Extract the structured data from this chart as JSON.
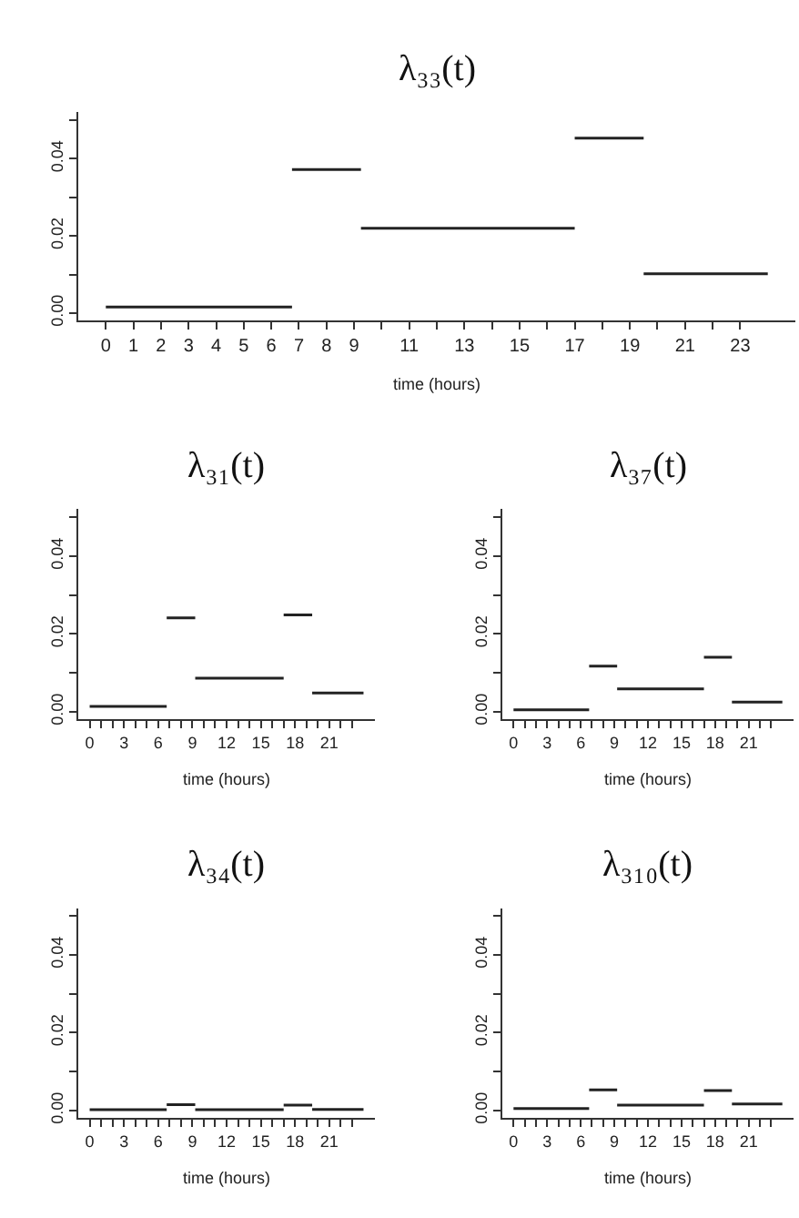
{
  "chart_data": [
    {
      "type": "line",
      "title": "λ₃₃(t)",
      "xlabel": "time (hours)",
      "marker": "none",
      "line_style": "solid",
      "xlim": [
        -1,
        25
      ],
      "ylim": [
        -0.002,
        0.052
      ],
      "xticks": [
        0,
        1,
        2,
        3,
        4,
        5,
        6,
        7,
        8,
        9,
        {
          "value": 10,
          "label": null
        },
        11,
        {
          "value": 12,
          "label": null
        },
        13,
        {
          "value": 14,
          "label": null
        },
        15,
        {
          "value": 16,
          "label": null
        },
        17,
        {
          "value": 18,
          "label": null
        },
        19,
        {
          "value": 20,
          "label": null
        },
        21,
        {
          "value": 22,
          "label": null
        },
        23
      ],
      "yticks": [
        {
          "value": 0,
          "label": "0.00"
        },
        {
          "value": 0.01,
          "label": null
        },
        {
          "value": 0.02,
          "label": "0.02"
        },
        {
          "value": 0.03,
          "label": null
        },
        {
          "value": 0.04,
          "label": "0.04"
        },
        {
          "value": 0.05,
          "label": null
        }
      ],
      "series": [
        {
          "color": "#222222",
          "x": [
            0,
            6.75
          ],
          "values": [
            0.0016,
            0.0016
          ]
        },
        {
          "color": "#222222",
          "x": [
            6.75,
            9.25
          ],
          "values": [
            0.0372,
            0.0372
          ]
        },
        {
          "color": "#222222",
          "x": [
            9.25,
            17
          ],
          "values": [
            0.022,
            0.022
          ]
        },
        {
          "color": "#222222",
          "x": [
            17,
            19.5
          ],
          "values": [
            0.0453,
            0.0453
          ]
        },
        {
          "color": "#222222",
          "x": [
            19.5,
            24
          ],
          "values": [
            0.0102,
            0.0102
          ]
        }
      ]
    },
    {
      "type": "line",
      "title": "λ₃₁(t)",
      "xlabel": "time (hours)",
      "marker": "none",
      "line_style": "solid",
      "xlim": [
        -1,
        25
      ],
      "ylim": [
        -0.002,
        0.052
      ],
      "xticks": [
        0,
        {
          "value": 1,
          "label": null
        },
        {
          "value": 2,
          "label": null
        },
        3,
        {
          "value": 4,
          "label": null
        },
        {
          "value": 5,
          "label": null
        },
        6,
        {
          "value": 7,
          "label": null
        },
        {
          "value": 8,
          "label": null
        },
        9,
        {
          "value": 10,
          "label": null
        },
        {
          "value": 11,
          "label": null
        },
        12,
        {
          "value": 13,
          "label": null
        },
        {
          "value": 14,
          "label": null
        },
        15,
        {
          "value": 16,
          "label": null
        },
        {
          "value": 17,
          "label": null
        },
        18,
        {
          "value": 19,
          "label": null
        },
        {
          "value": 20,
          "label": null
        },
        21,
        {
          "value": 22,
          "label": null
        },
        {
          "value": 23,
          "label": null
        }
      ],
      "yticks": [
        {
          "value": 0,
          "label": "0.00"
        },
        {
          "value": 0.01,
          "label": null
        },
        {
          "value": 0.02,
          "label": "0.02"
        },
        {
          "value": 0.03,
          "label": null
        },
        {
          "value": 0.04,
          "label": "0.04"
        },
        {
          "value": 0.05,
          "label": null
        }
      ],
      "series": [
        {
          "color": "#222222",
          "x": [
            0,
            6.75
          ],
          "values": [
            0.0014,
            0.0014
          ]
        },
        {
          "color": "#222222",
          "x": [
            6.75,
            9.25
          ],
          "values": [
            0.0241,
            0.0241
          ]
        },
        {
          "color": "#222222",
          "x": [
            9.25,
            17
          ],
          "values": [
            0.0086,
            0.0086
          ]
        },
        {
          "color": "#222222",
          "x": [
            17,
            19.5
          ],
          "values": [
            0.0249,
            0.0249
          ]
        },
        {
          "color": "#222222",
          "x": [
            19.5,
            24
          ],
          "values": [
            0.0048,
            0.0048
          ]
        }
      ]
    },
    {
      "type": "line",
      "title": "λ₃₇(t)",
      "xlabel": "time (hours)",
      "marker": "none",
      "line_style": "solid",
      "xlim": [
        -1,
        25
      ],
      "ylim": [
        -0.002,
        0.052
      ],
      "xticks": [
        0,
        {
          "value": 1,
          "label": null
        },
        {
          "value": 2,
          "label": null
        },
        3,
        {
          "value": 4,
          "label": null
        },
        {
          "value": 5,
          "label": null
        },
        6,
        {
          "value": 7,
          "label": null
        },
        {
          "value": 8,
          "label": null
        },
        9,
        {
          "value": 10,
          "label": null
        },
        {
          "value": 11,
          "label": null
        },
        12,
        {
          "value": 13,
          "label": null
        },
        {
          "value": 14,
          "label": null
        },
        15,
        {
          "value": 16,
          "label": null
        },
        {
          "value": 17,
          "label": null
        },
        18,
        {
          "value": 19,
          "label": null
        },
        {
          "value": 20,
          "label": null
        },
        21,
        {
          "value": 22,
          "label": null
        },
        {
          "value": 23,
          "label": null
        }
      ],
      "yticks": [
        {
          "value": 0,
          "label": "0.00"
        },
        {
          "value": 0.01,
          "label": null
        },
        {
          "value": 0.02,
          "label": "0.02"
        },
        {
          "value": 0.03,
          "label": null
        },
        {
          "value": 0.04,
          "label": "0.04"
        },
        {
          "value": 0.05,
          "label": null
        }
      ],
      "series": [
        {
          "color": "#222222",
          "x": [
            0,
            6.75
          ],
          "values": [
            0.0005,
            0.0005
          ]
        },
        {
          "color": "#222222",
          "x": [
            6.75,
            9.25
          ],
          "values": [
            0.0117,
            0.0117
          ]
        },
        {
          "color": "#222222",
          "x": [
            9.25,
            17
          ],
          "values": [
            0.0059,
            0.0059
          ]
        },
        {
          "color": "#222222",
          "x": [
            17,
            19.5
          ],
          "values": [
            0.014,
            0.014
          ]
        },
        {
          "color": "#222222",
          "x": [
            19.5,
            24
          ],
          "values": [
            0.0025,
            0.0025
          ]
        }
      ]
    },
    {
      "type": "line",
      "title": "λ₃₄(t)",
      "xlabel": "time (hours)",
      "marker": "none",
      "line_style": "solid",
      "xlim": [
        -1,
        25
      ],
      "ylim": [
        -0.002,
        0.052
      ],
      "xticks": [
        0,
        {
          "value": 1,
          "label": null
        },
        {
          "value": 2,
          "label": null
        },
        3,
        {
          "value": 4,
          "label": null
        },
        {
          "value": 5,
          "label": null
        },
        6,
        {
          "value": 7,
          "label": null
        },
        {
          "value": 8,
          "label": null
        },
        9,
        {
          "value": 10,
          "label": null
        },
        {
          "value": 11,
          "label": null
        },
        12,
        {
          "value": 13,
          "label": null
        },
        {
          "value": 14,
          "label": null
        },
        15,
        {
          "value": 16,
          "label": null
        },
        {
          "value": 17,
          "label": null
        },
        18,
        {
          "value": 19,
          "label": null
        },
        {
          "value": 20,
          "label": null
        },
        21,
        {
          "value": 22,
          "label": null
        },
        {
          "value": 23,
          "label": null
        }
      ],
      "yticks": [
        {
          "value": 0,
          "label": "0.00"
        },
        {
          "value": 0.01,
          "label": null
        },
        {
          "value": 0.02,
          "label": "0.02"
        },
        {
          "value": 0.03,
          "label": null
        },
        {
          "value": 0.04,
          "label": "0.04"
        },
        {
          "value": 0.05,
          "label": null
        }
      ],
      "series": [
        {
          "color": "#222222",
          "x": [
            0,
            6.75
          ],
          "values": [
            0.0002,
            0.0002
          ]
        },
        {
          "color": "#222222",
          "x": [
            6.75,
            9.25
          ],
          "values": [
            0.0015,
            0.0015
          ]
        },
        {
          "color": "#222222",
          "x": [
            9.25,
            17
          ],
          "values": [
            0.0002,
            0.0002
          ]
        },
        {
          "color": "#222222",
          "x": [
            17,
            19.5
          ],
          "values": [
            0.0014,
            0.0014
          ]
        },
        {
          "color": "#222222",
          "x": [
            19.5,
            24
          ],
          "values": [
            0.0003,
            0.0003
          ]
        }
      ]
    },
    {
      "type": "line",
      "title": "λ₃₁₀(t)",
      "xlabel": "time (hours)",
      "marker": "none",
      "line_style": "solid",
      "xlim": [
        -1,
        25
      ],
      "ylim": [
        -0.002,
        0.052
      ],
      "xticks": [
        0,
        {
          "value": 1,
          "label": null
        },
        {
          "value": 2,
          "label": null
        },
        3,
        {
          "value": 4,
          "label": null
        },
        {
          "value": 5,
          "label": null
        },
        6,
        {
          "value": 7,
          "label": null
        },
        {
          "value": 8,
          "label": null
        },
        9,
        {
          "value": 10,
          "label": null
        },
        {
          "value": 11,
          "label": null
        },
        12,
        {
          "value": 13,
          "label": null
        },
        {
          "value": 14,
          "label": null
        },
        15,
        {
          "value": 16,
          "label": null
        },
        {
          "value": 17,
          "label": null
        },
        18,
        {
          "value": 19,
          "label": null
        },
        {
          "value": 20,
          "label": null
        },
        21,
        {
          "value": 22,
          "label": null
        },
        {
          "value": 23,
          "label": null
        }
      ],
      "yticks": [
        {
          "value": 0,
          "label": "0.00"
        },
        {
          "value": 0.01,
          "label": null
        },
        {
          "value": 0.02,
          "label": "0.02"
        },
        {
          "value": 0.03,
          "label": null
        },
        {
          "value": 0.04,
          "label": "0.04"
        },
        {
          "value": 0.05,
          "label": null
        }
      ],
      "series": [
        {
          "color": "#222222",
          "x": [
            0,
            6.75
          ],
          "values": [
            0.0005,
            0.0005
          ]
        },
        {
          "color": "#222222",
          "x": [
            6.75,
            9.25
          ],
          "values": [
            0.0053,
            0.0053
          ]
        },
        {
          "color": "#222222",
          "x": [
            9.25,
            17
          ],
          "values": [
            0.0014,
            0.0014
          ]
        },
        {
          "color": "#222222",
          "x": [
            17,
            19.5
          ],
          "values": [
            0.0051,
            0.0051
          ]
        },
        {
          "color": "#222222",
          "x": [
            19.5,
            24
          ],
          "values": [
            0.0017,
            0.0017
          ]
        }
      ]
    }
  ]
}
